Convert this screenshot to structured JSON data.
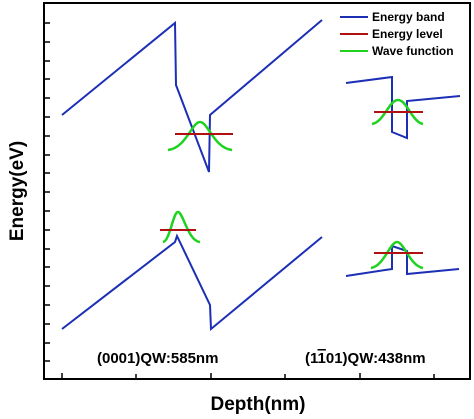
{
  "figure": {
    "ylabel": "Energy(eV)",
    "xlabel": "Depth(nm)",
    "legend": {
      "placement": "top-right",
      "items": [
        {
          "key": "band",
          "label": "Energy band",
          "color": "#1c2fb5"
        },
        {
          "key": "level",
          "label": "Energy level",
          "color": "#b01010"
        },
        {
          "key": "wave",
          "label": "Wave function",
          "color": "#1fd21f"
        }
      ]
    },
    "panels": [
      {
        "key": "left",
        "caption_main": "(0001)QW:585nm"
      },
      {
        "key": "right",
        "caption_pre": "(1",
        "caption_bar": "1",
        "caption_post": "01)QW:438nm"
      }
    ]
  }
}
